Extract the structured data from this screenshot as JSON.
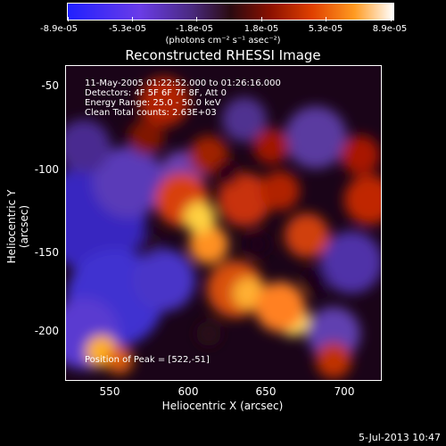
{
  "colorbar": {
    "ticks": [
      "-8.9e-05",
      "-5.3e-05",
      "-1.8e-05",
      "1.8e-05",
      "5.3e-05",
      "8.9e-05"
    ],
    "units": "(photons cm⁻² s⁻¹ asec⁻²)"
  },
  "title": "Reconstructed RHESSI Image",
  "info": {
    "time": "11-May-2005 01:22:52.000 to 01:26:16.000",
    "detectors": "Detectors: 4F 5F 6F 7F 8F, Att 0",
    "energy": "Energy Range: 25.0 - 50.0 keV",
    "clean": "Clean     Total counts: 2.63E+03",
    "peak": "Position of Peak = [522,-51]"
  },
  "axes": {
    "xlabel": "Heliocentric X (arcsec)",
    "ylabel": "Heliocentric Y (arcsec)",
    "xticks": [
      "550",
      "600",
      "650",
      "700"
    ],
    "yticks": [
      "-50",
      "-100",
      "-150",
      "-200"
    ]
  },
  "footer": "5-Jul-2013 10:47",
  "colors": {
    "negative": "#3a28c8",
    "zero": "#1a0418",
    "positive": "#e05010",
    "peak": "#ffe040"
  }
}
